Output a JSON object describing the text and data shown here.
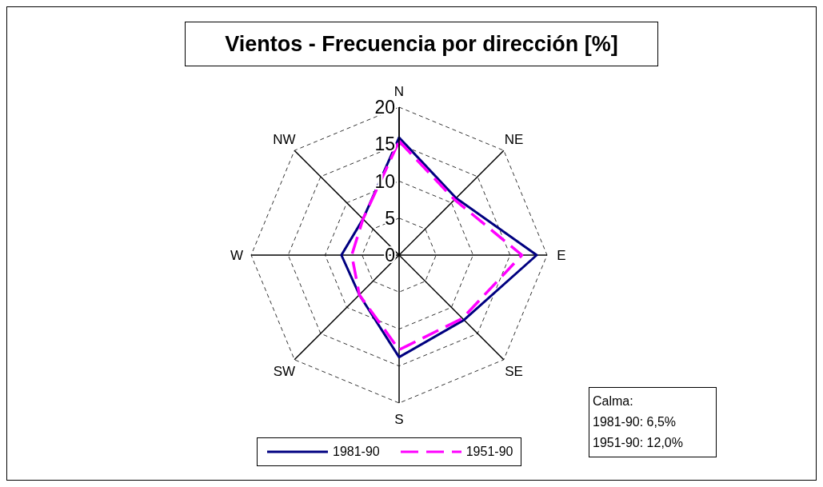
{
  "chart_data": {
    "type": "radar",
    "title": "Vientos - Frecuencia por dirección [%]",
    "categories": [
      "N",
      "NE",
      "E",
      "SE",
      "S",
      "SW",
      "W",
      "NW"
    ],
    "series": [
      {
        "name": "1981-90",
        "color": "#000080",
        "line_style": "solid",
        "values": [
          15.9,
          10.9,
          18.6,
          12.4,
          13.8,
          7.6,
          7.8,
          6.9
        ]
      },
      {
        "name": "1951-90",
        "color": "#ff00ff",
        "line_style": "dashed",
        "values": [
          15.4,
          10.6,
          16.6,
          12.1,
          12.8,
          7.6,
          6.4,
          6.9
        ]
      }
    ],
    "ylim": [
      0,
      20
    ],
    "yticks": [
      0,
      5,
      10,
      15,
      20
    ],
    "grid": true,
    "legend": "bottom",
    "marker": "none",
    "annotations": [
      "Calma:",
      "1981-90: 6,5%",
      "1951-90: 12,0%"
    ]
  }
}
